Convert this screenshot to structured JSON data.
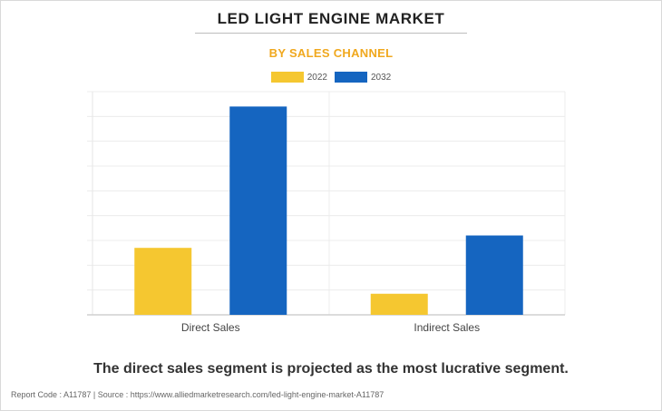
{
  "title": "LED LIGHT ENGINE MARKET",
  "subtitle": "BY SALES CHANNEL",
  "caption": "The direct sales segment is projected as the most lucrative segment.",
  "footer": "Report Code : A11787  |  Source : https://www.alliedmarketresearch.com/led-light-engine-market-A11787",
  "colors": {
    "2022": "#f5c730",
    "2032": "#1565c0",
    "subtitle": "#f0a81e"
  },
  "chart_data": {
    "type": "bar",
    "title": "LED LIGHT ENGINE MARKET",
    "subtitle": "BY SALES CHANNEL",
    "categories": [
      "Direct Sales",
      "Indirect Sales"
    ],
    "series": [
      {
        "name": "2022",
        "color": "#f5c730",
        "values": [
          2.7,
          0.85
        ]
      },
      {
        "name": "2032",
        "color": "#1565c0",
        "values": [
          8.4,
          3.2
        ]
      }
    ],
    "xlabel": "",
    "ylabel": "",
    "ylim": [
      0,
      9
    ],
    "grid": true,
    "legend_position": "top-center"
  }
}
